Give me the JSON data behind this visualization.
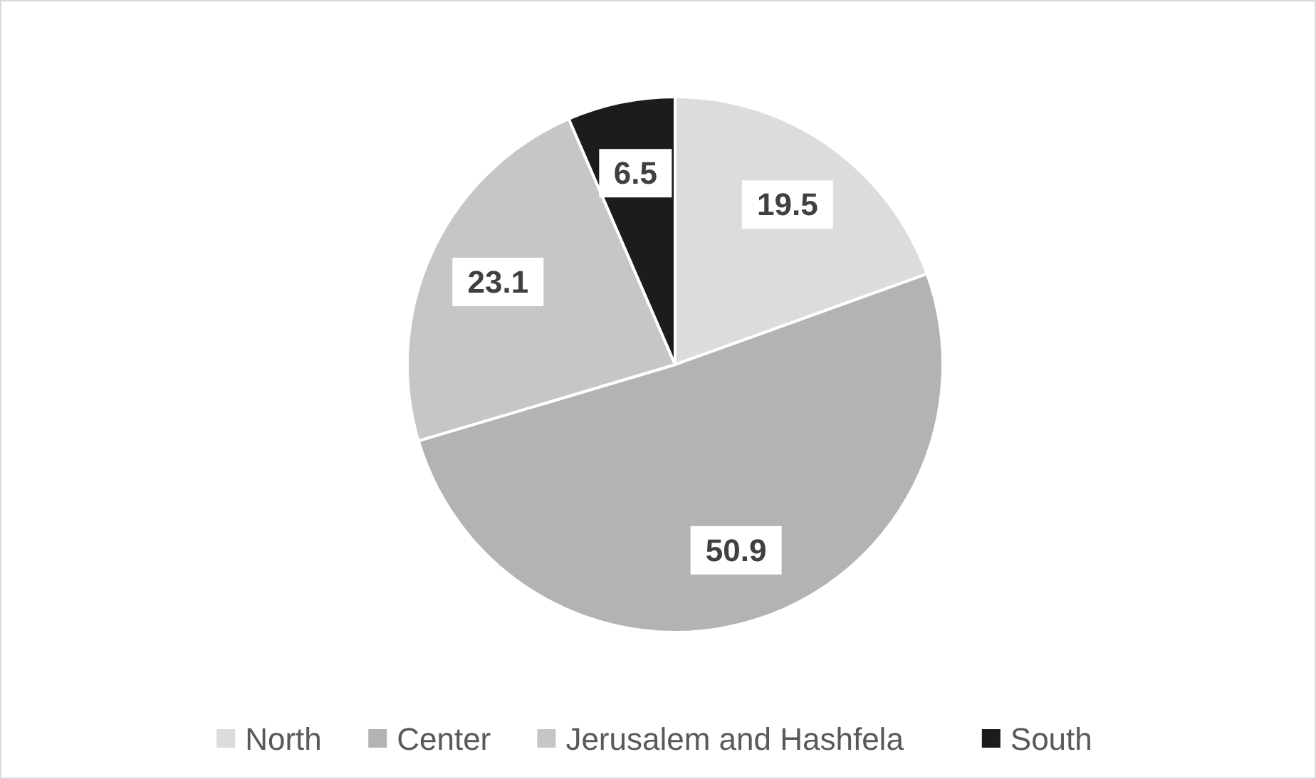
{
  "chart_data": {
    "type": "pie",
    "categories": [
      "North",
      "Center",
      "Jerusalem and Hashfela",
      "South"
    ],
    "values": [
      19.5,
      50.9,
      23.1,
      6.5
    ],
    "colors": [
      "#dcdcdc",
      "#b3b3b3",
      "#c6c6c6",
      "#1c1c1c"
    ],
    "data_labels": true,
    "legend": "bottom"
  }
}
